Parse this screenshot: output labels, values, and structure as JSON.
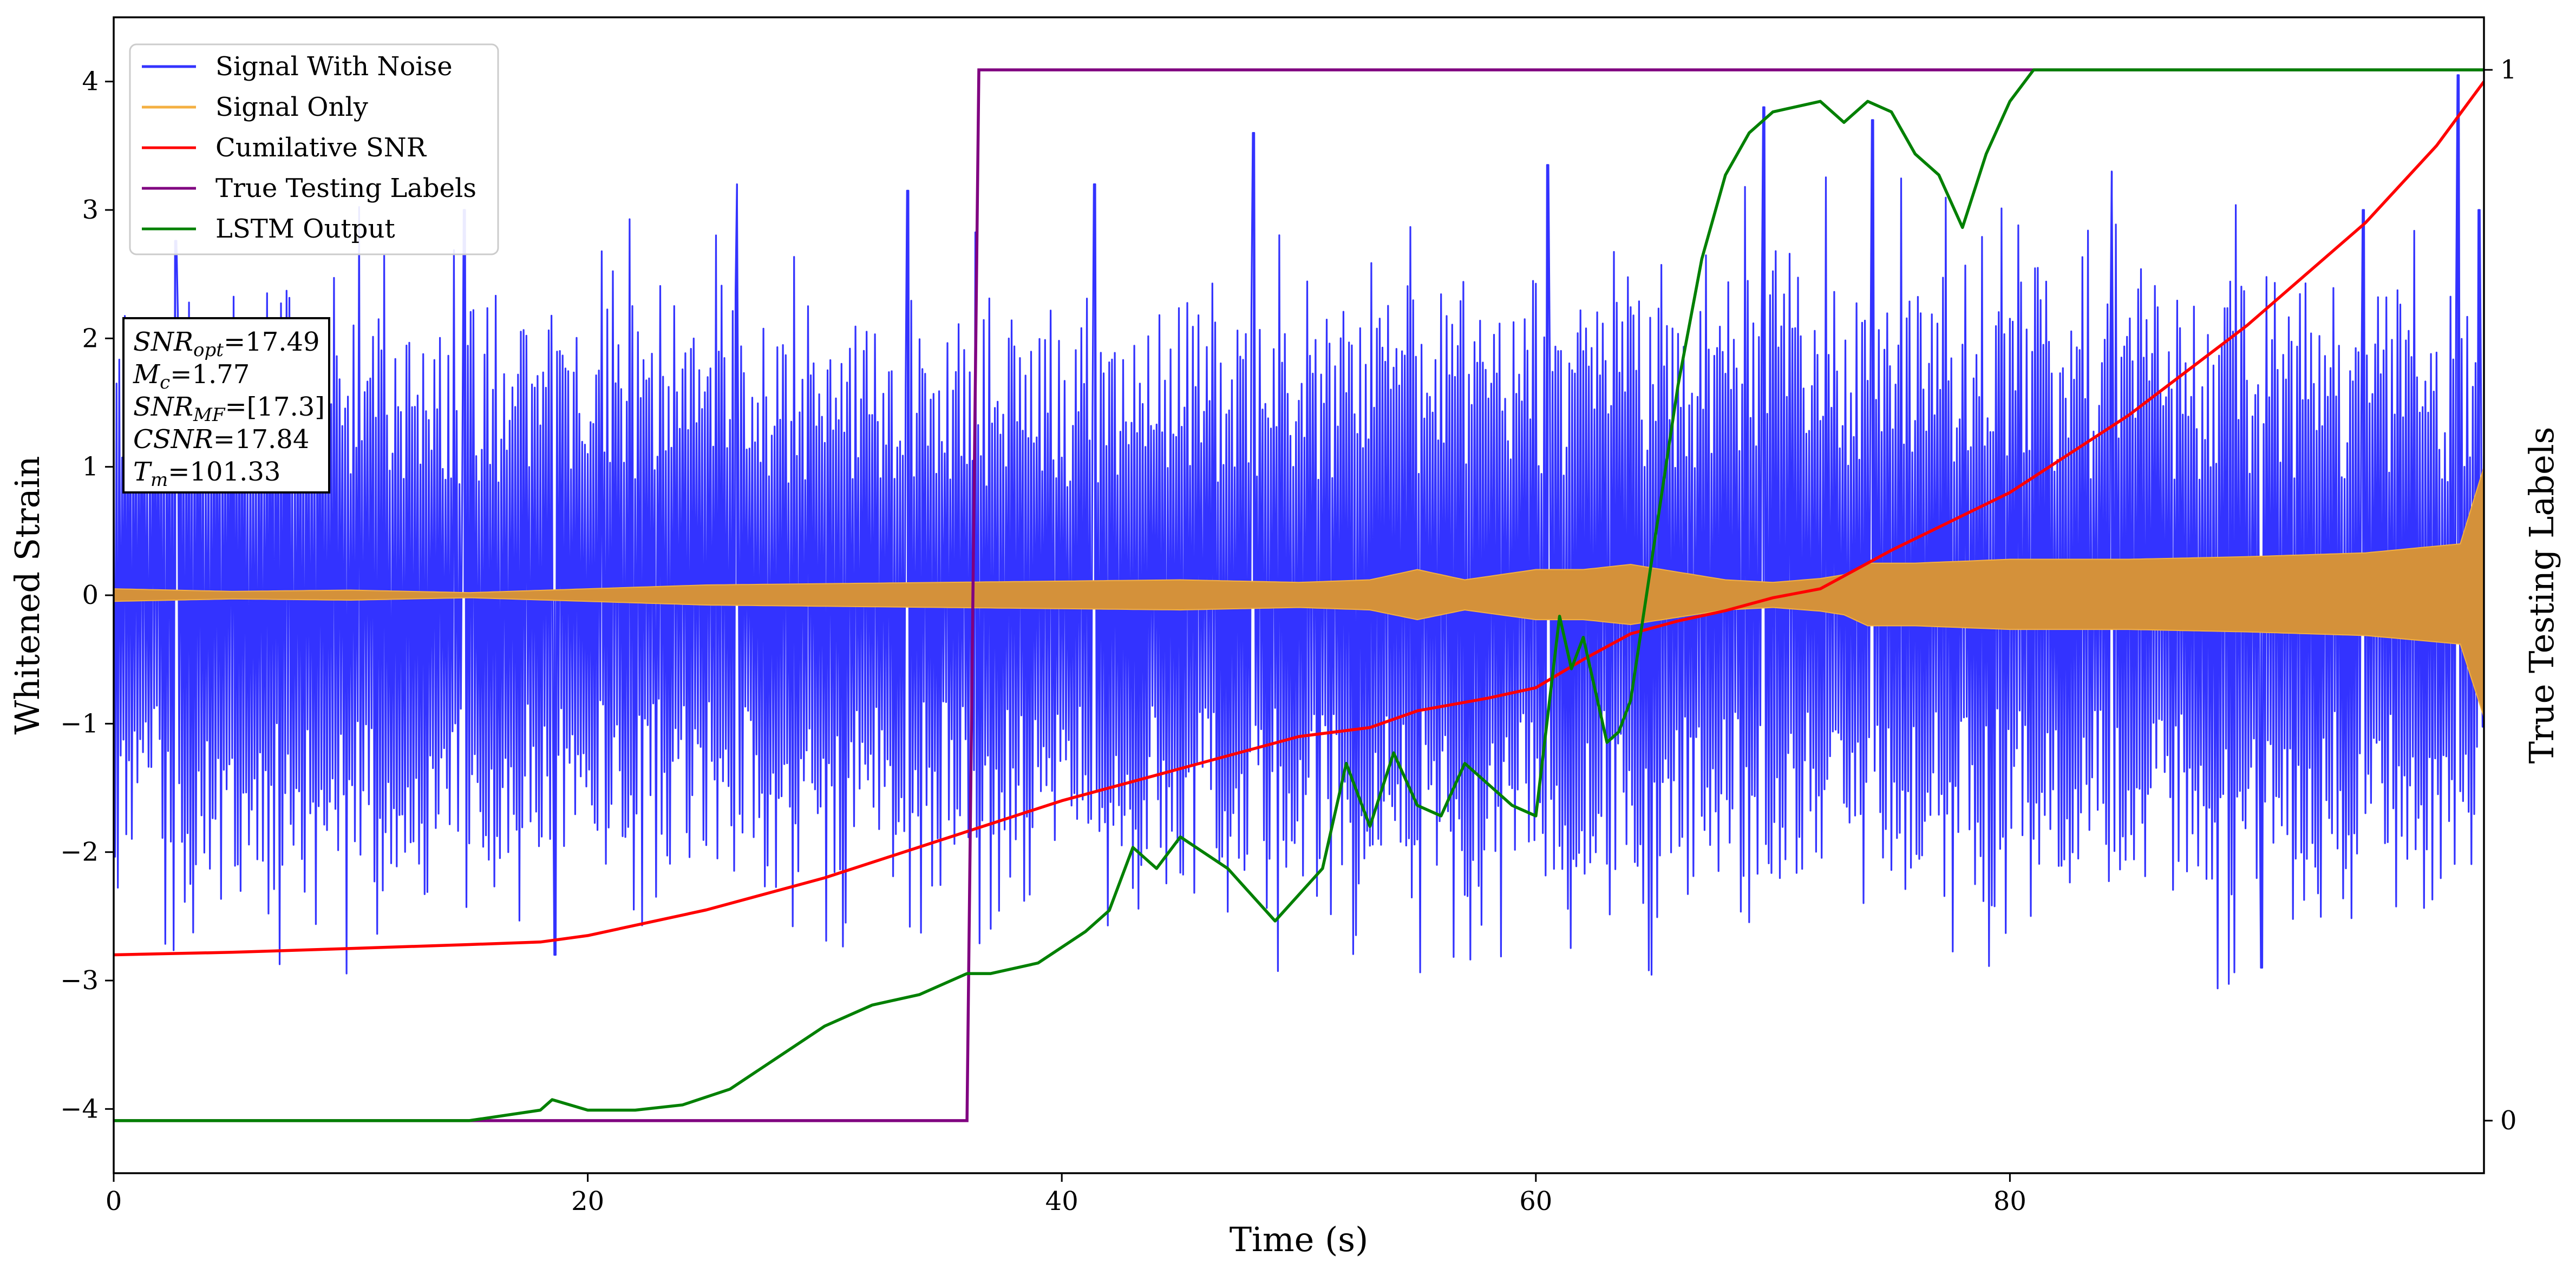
{
  "chart_data": {
    "type": "line",
    "xlabel": "Time (s)",
    "ylabel": "Whitened Strain",
    "ylabel_right": "True Testing Labels",
    "xlim": [
      0,
      100
    ],
    "ylim": [
      -4.5,
      4.5
    ],
    "ylim_right": [
      -0.05,
      1.05
    ],
    "x_ticks": [
      0,
      20,
      40,
      60,
      80
    ],
    "y_ticks": [
      -4,
      -3,
      -2,
      -1,
      0,
      1,
      2,
      3,
      4
    ],
    "y_ticks_right": [
      0,
      1
    ],
    "grid": false,
    "legend_position": "top-left",
    "legend": [
      "Signal With Noise",
      "Signal Only",
      "Cumilative SNR",
      "True Testing Labels",
      "LSTM Output"
    ],
    "colors": {
      "noise": "#3333ff",
      "signal": "#f4b042",
      "signal_fill": "#d4913a",
      "csnr": "#ff0000",
      "labels": "#800080",
      "lstm": "#008000"
    },
    "stats_box": [
      {
        "sym": "SNR",
        "sub": "opt",
        "val": "=17.49"
      },
      {
        "sym": "M",
        "sub": "c",
        "val": "=1.77"
      },
      {
        "sym": "SNR",
        "sub": "MF",
        "val": "=[17.3]"
      },
      {
        "sym": "CSNR",
        "sub": "",
        "val": "=17.84"
      },
      {
        "sym": "T",
        "sub": "m",
        "val": "=101.33"
      }
    ],
    "series": [
      {
        "name": "Signal With Noise",
        "axis": "left",
        "envelope": {
          "x": [
            0,
            10,
            20,
            30,
            40,
            50,
            60,
            70,
            80,
            90,
            100
          ],
          "upper": [
            2.4,
            2.5,
            2.4,
            2.3,
            2.4,
            2.5,
            2.6,
            2.7,
            2.6,
            2.5,
            2.4
          ],
          "lower": [
            -2.4,
            -2.6,
            -2.3,
            -2.3,
            -2.4,
            -2.5,
            -2.5,
            -2.6,
            -2.5,
            -2.6,
            -2.5
          ]
        },
        "spikes": [
          [
            2.6,
            2.76
          ],
          [
            14.8,
            3.0
          ],
          [
            18.6,
            -2.8
          ],
          [
            26.3,
            3.2
          ],
          [
            33.5,
            3.15
          ],
          [
            41.4,
            3.2
          ],
          [
            48.1,
            3.6
          ],
          [
            60.5,
            3.35
          ],
          [
            69.6,
            3.8
          ],
          [
            74.2,
            3.7
          ],
          [
            84.3,
            3.3
          ],
          [
            90.6,
            -2.9
          ],
          [
            94.9,
            3.0
          ],
          [
            98.9,
            4.05
          ],
          [
            99.8,
            3.0
          ]
        ]
      },
      {
        "name": "Signal Only",
        "axis": "left",
        "amplitude": {
          "x": [
            0,
            5,
            10,
            15,
            25,
            35,
            45,
            50,
            53,
            55,
            57,
            60,
            62,
            64,
            66,
            68,
            70,
            72,
            73,
            74,
            76,
            80,
            85,
            90,
            95,
            99,
            100
          ],
          "a": [
            0.05,
            0.03,
            0.04,
            0.02,
            0.08,
            0.1,
            0.12,
            0.1,
            0.12,
            0.2,
            0.12,
            0.2,
            0.2,
            0.24,
            0.18,
            0.12,
            0.1,
            0.13,
            0.16,
            0.25,
            0.25,
            0.28,
            0.28,
            0.3,
            0.33,
            0.4,
            1.0
          ]
        }
      },
      {
        "name": "Cumilative SNR",
        "axis": "left",
        "x": [
          0,
          5,
          10,
          15,
          18,
          20,
          25,
          30,
          35,
          40,
          45,
          50,
          53,
          55,
          58,
          60,
          62,
          64,
          66,
          68,
          70,
          72,
          75,
          80,
          85,
          90,
          95,
          98,
          100
        ],
        "values": [
          -2.8,
          -2.78,
          -2.75,
          -2.72,
          -2.7,
          -2.65,
          -2.45,
          -2.2,
          -1.9,
          -1.6,
          -1.35,
          -1.1,
          -1.03,
          -0.9,
          -0.8,
          -0.72,
          -0.5,
          -0.3,
          -0.2,
          -0.12,
          -0.02,
          0.05,
          0.35,
          0.8,
          1.4,
          2.1,
          2.9,
          3.5,
          4.0
        ]
      },
      {
        "name": "True Testing Labels",
        "axis": "right",
        "x": [
          0,
          36,
          36.5,
          100
        ],
        "values": [
          0,
          0,
          1,
          1
        ]
      },
      {
        "name": "LSTM Output",
        "axis": "right",
        "x": [
          0,
          15,
          18,
          18.5,
          20,
          22,
          24,
          26,
          28,
          30,
          32,
          34,
          36,
          37,
          39,
          41,
          42,
          43,
          44,
          45,
          47,
          49,
          51,
          52,
          53,
          54,
          55,
          56,
          57,
          58,
          59,
          60,
          61,
          61.5,
          62,
          63,
          63.5,
          64,
          65,
          66,
          67,
          68,
          69,
          70,
          72,
          73,
          74,
          75,
          76,
          77,
          78,
          79,
          80,
          81,
          85,
          90,
          95,
          100
        ],
        "values": [
          0,
          0,
          0.01,
          0.02,
          0.01,
          0.01,
          0.015,
          0.03,
          0.06,
          0.09,
          0.11,
          0.12,
          0.14,
          0.14,
          0.15,
          0.18,
          0.2,
          0.26,
          0.24,
          0.27,
          0.24,
          0.19,
          0.24,
          0.34,
          0.28,
          0.35,
          0.3,
          0.29,
          0.34,
          0.32,
          0.3,
          0.29,
          0.48,
          0.43,
          0.46,
          0.36,
          0.37,
          0.4,
          0.55,
          0.7,
          0.82,
          0.9,
          0.94,
          0.96,
          0.97,
          0.95,
          0.97,
          0.96,
          0.92,
          0.9,
          0.85,
          0.92,
          0.97,
          1.0,
          1.0,
          1.0,
          1.0,
          1.0
        ]
      }
    ]
  }
}
